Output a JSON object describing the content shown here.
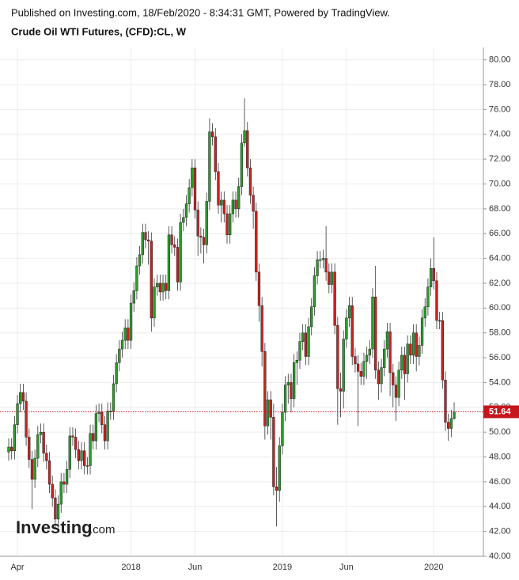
{
  "chart_data": {
    "type": "candlestick",
    "published": "Published on Investing.com, 18/Feb/2020 - 8:34:31 GMT, Powered by TradingView.",
    "title": "Crude Oil WTI Futures, (CFD):CL, W",
    "watermark": [
      "Investing",
      ".com"
    ],
    "categories": [
      null,
      null,
      null,
      "Apr",
      null,
      null,
      null,
      null,
      null,
      null,
      null,
      null,
      null,
      null,
      null,
      null,
      null,
      null,
      null,
      null,
      null,
      null,
      null,
      null,
      null,
      null,
      null,
      null,
      null,
      null,
      null,
      null,
      null,
      null,
      null,
      null,
      null,
      null,
      null,
      null,
      null,
      null,
      "2018",
      null,
      null,
      null,
      null,
      null,
      null,
      null,
      null,
      null,
      null,
      null,
      null,
      null,
      null,
      null,
      null,
      null,
      null,
      null,
      null,
      null,
      "Jun",
      null,
      null,
      null,
      null,
      null,
      null,
      null,
      null,
      null,
      null,
      null,
      null,
      null,
      null,
      null,
      null,
      null,
      null,
      null,
      null,
      null,
      null,
      null,
      null,
      null,
      null,
      null,
      null,
      null,
      "2019",
      null,
      null,
      null,
      null,
      null,
      null,
      null,
      null,
      null,
      null,
      null,
      null,
      null,
      null,
      null,
      null,
      null,
      null,
      null,
      null,
      null,
      "Jun",
      null,
      null,
      null,
      null,
      null,
      null,
      null,
      null,
      null,
      null,
      null,
      null,
      null,
      null,
      null,
      null,
      null,
      null,
      null,
      null,
      null,
      null,
      null,
      null,
      null,
      null,
      null,
      null,
      null,
      "2020",
      null,
      null,
      null,
      null,
      null,
      null,
      null
    ],
    "open": [
      48.4,
      48.8,
      48.5,
      50.6,
      52.3,
      53.2,
      52.5,
      49.6,
      47.8,
      46.2,
      47.9,
      49.8,
      50.0,
      48.3,
      47.7,
      45.8,
      44.7,
      43.0,
      44.2,
      46.0,
      45.8,
      47.0,
      49.7,
      49.6,
      48.6,
      47.7,
      48.5,
      47.3,
      47.3,
      49.9,
      49.3,
      51.5,
      51.6,
      50.6,
      49.3,
      51.7,
      51.7,
      53.9,
      55.6,
      56.7,
      57.4,
      58.4,
      57.4,
      60.4,
      61.4,
      63.4,
      64.3,
      66.1,
      65.5,
      65.4,
      59.2,
      61.7,
      62.0,
      61.3,
      62.0,
      61.4,
      65.9,
      65.1,
      64.9,
      62.1,
      66.9,
      67.3,
      68.4,
      69.7,
      71.3,
      67.9,
      65.8,
      65.7,
      65.1,
      68.6,
      74.2,
      73.8,
      71.0,
      68.3,
      68.7,
      67.6,
      65.9,
      67.6,
      68.7,
      68.0,
      69.8,
      73.3,
      74.3,
      71.3,
      69.1,
      67.8,
      62.9,
      60.2,
      56.5,
      50.5,
      52.6,
      51.2,
      45.6,
      45.3,
      48.9,
      51.6,
      53.8,
      54.0,
      52.7,
      55.6,
      55.8,
      57.3,
      58.0,
      56.1,
      58.5,
      60.1,
      62.6,
      63.9,
      63.9,
      64.0,
      62.9,
      61.9,
      62.9,
      58.6,
      53.5,
      53.3,
      57.5,
      59.2,
      60.2,
      56.1,
      55.5,
      54.9,
      54.5,
      55.7,
      56.2,
      56.7,
      60.9,
      55.0,
      53.9,
      55.2,
      56.7,
      58.1,
      54.8,
      53.8,
      52.8,
      55.0,
      56.2,
      54.7,
      57.1,
      56.2,
      58.0,
      56.1,
      57.0,
      59.2,
      60.1,
      61.7,
      63.2,
      62.2,
      59.0,
      59.0,
      54.2,
      50.8,
      50.3,
      51.1
    ],
    "high": [
      49.5,
      49.5,
      51.3,
      53.0,
      53.9,
      53.9,
      53.2,
      50.3,
      48.5,
      48.6,
      50.5,
      50.7,
      50.7,
      49.0,
      48.4,
      46.5,
      45.4,
      44.9,
      46.7,
      46.7,
      47.7,
      50.4,
      50.4,
      50.3,
      49.3,
      49.2,
      49.2,
      48.0,
      50.6,
      50.6,
      52.2,
      52.3,
      52.3,
      51.3,
      52.4,
      52.4,
      54.6,
      56.3,
      57.4,
      58.1,
      59.1,
      59.1,
      61.1,
      62.1,
      64.1,
      65.0,
      66.8,
      66.8,
      66.2,
      66.1,
      62.4,
      62.7,
      62.7,
      62.7,
      62.7,
      66.6,
      66.6,
      65.8,
      65.6,
      67.6,
      68.0,
      69.1,
      70.4,
      72.0,
      72.0,
      68.6,
      66.5,
      66.4,
      69.3,
      75.3,
      74.9,
      74.5,
      71.7,
      69.4,
      69.4,
      68.3,
      68.3,
      69.4,
      69.4,
      70.5,
      74.0,
      76.9,
      75.0,
      72.0,
      69.8,
      68.5,
      63.6,
      60.9,
      57.2,
      53.3,
      53.3,
      52.3,
      47.2,
      49.6,
      52.3,
      54.5,
      54.7,
      54.7,
      56.3,
      56.5,
      58.0,
      58.7,
      58.7,
      59.2,
      60.8,
      63.3,
      64.6,
      64.6,
      64.7,
      66.6,
      63.6,
      63.6,
      63.6,
      59.3,
      54.8,
      58.2,
      59.9,
      60.9,
      60.9,
      56.8,
      56.2,
      55.6,
      56.4,
      56.9,
      57.4,
      61.6,
      63.4,
      55.7,
      55.9,
      57.4,
      58.8,
      58.8,
      55.5,
      54.5,
      55.7,
      56.9,
      56.9,
      57.8,
      57.8,
      58.7,
      58.7,
      57.7,
      59.9,
      60.8,
      62.4,
      64.0,
      65.7,
      62.9,
      59.7,
      59.7,
      54.9,
      51.5,
      51.8,
      52.4
    ],
    "low": [
      47.7,
      47.8,
      47.8,
      49.9,
      51.6,
      51.8,
      48.9,
      47.1,
      43.8,
      45.5,
      47.2,
      49.1,
      47.6,
      47.0,
      45.1,
      44.0,
      42.3,
      42.3,
      43.5,
      45.1,
      45.1,
      46.3,
      48.9,
      47.9,
      47.0,
      47.0,
      46.6,
      46.6,
      46.6,
      48.6,
      48.6,
      50.8,
      49.9,
      48.6,
      48.6,
      51.0,
      51.0,
      53.2,
      54.9,
      56.0,
      56.7,
      56.7,
      56.7,
      59.7,
      60.7,
      62.7,
      63.6,
      64.8,
      63.5,
      58.1,
      58.5,
      61.0,
      60.6,
      60.6,
      60.7,
      60.7,
      64.4,
      64.2,
      61.4,
      61.4,
      66.2,
      66.6,
      67.7,
      69.0,
      67.2,
      64.2,
      64.4,
      63.6,
      64.4,
      67.9,
      73.1,
      70.3,
      67.6,
      66.9,
      66.9,
      65.2,
      65.2,
      66.9,
      67.3,
      67.3,
      69.1,
      73.0,
      70.6,
      68.4,
      66.4,
      62.2,
      58.9,
      55.3,
      49.4,
      49.8,
      49.4,
      44.9,
      42.4,
      44.4,
      48.2,
      50.9,
      52.3,
      51.6,
      52.0,
      53.8,
      55.1,
      56.6,
      55.4,
      55.4,
      57.8,
      59.4,
      61.9,
      63.2,
      63.2,
      62.2,
      61.2,
      61.2,
      57.9,
      50.6,
      51.2,
      51.9,
      56.8,
      58.5,
      55.4,
      54.8,
      50.5,
      53.8,
      53.8,
      54.3,
      55.5,
      56.0,
      54.3,
      52.6,
      53.2,
      54.5,
      56.0,
      52.9,
      52.0,
      50.9,
      52.1,
      54.3,
      52.6,
      54.0,
      55.5,
      55.5,
      54.9,
      55.4,
      56.3,
      58.5,
      59.4,
      61.0,
      61.5,
      58.3,
      58.3,
      53.5,
      50.1,
      49.3,
      49.6,
      51.0
    ],
    "close": [
      48.8,
      48.5,
      50.6,
      52.3,
      53.2,
      52.5,
      49.6,
      47.8,
      46.2,
      47.9,
      49.8,
      50.0,
      48.3,
      47.7,
      45.8,
      44.7,
      43.0,
      44.2,
      46.0,
      45.8,
      47.0,
      49.7,
      49.6,
      48.6,
      47.7,
      48.5,
      47.3,
      47.3,
      49.9,
      49.3,
      51.5,
      51.6,
      50.6,
      49.3,
      51.7,
      51.7,
      53.9,
      55.6,
      56.7,
      57.4,
      58.4,
      57.4,
      60.4,
      61.4,
      63.4,
      64.3,
      66.1,
      65.5,
      65.4,
      59.2,
      61.7,
      62.0,
      61.3,
      62.0,
      61.4,
      65.9,
      65.1,
      64.9,
      62.1,
      66.9,
      67.3,
      68.4,
      69.7,
      71.3,
      67.9,
      65.8,
      65.7,
      65.1,
      68.6,
      74.2,
      73.8,
      71.0,
      68.3,
      68.7,
      67.6,
      65.9,
      67.6,
      68.7,
      68.0,
      69.8,
      73.3,
      74.3,
      71.3,
      69.1,
      67.8,
      62.9,
      60.2,
      56.5,
      50.5,
      52.6,
      51.2,
      45.6,
      45.3,
      48.9,
      51.6,
      53.8,
      54.0,
      52.7,
      55.6,
      55.8,
      57.3,
      58.0,
      56.1,
      58.5,
      60.1,
      62.6,
      63.9,
      63.9,
      64.0,
      62.9,
      61.9,
      62.9,
      58.6,
      53.5,
      53.3,
      57.5,
      59.2,
      60.2,
      56.1,
      55.5,
      54.9,
      54.5,
      55.7,
      56.2,
      56.7,
      60.9,
      55.0,
      53.9,
      55.2,
      56.7,
      58.1,
      54.8,
      53.8,
      52.8,
      55.0,
      56.2,
      54.7,
      57.1,
      56.2,
      58.0,
      56.1,
      57.0,
      59.2,
      60.1,
      61.7,
      63.2,
      62.2,
      59.0,
      59.0,
      54.2,
      50.8,
      50.3,
      51.1,
      51.64
    ],
    "up_color": "#2a9d2a",
    "down_color": "#cc2020",
    "last_price": 51.64,
    "last_price_color": "#c4161c",
    "ylim": [
      40,
      81
    ],
    "yticks": [
      {
        "value": 40,
        "label": "40.00"
      },
      {
        "value": 42,
        "label": "42.00"
      },
      {
        "value": 44,
        "label": "44.00"
      },
      {
        "value": 46,
        "label": "46.00"
      },
      {
        "value": 48,
        "label": "48.00"
      },
      {
        "value": 50,
        "label": "50.00"
      },
      {
        "value": 52,
        "label": "52.00"
      },
      {
        "value": 54,
        "label": "54.00"
      },
      {
        "value": 56,
        "label": "56.00"
      },
      {
        "value": 58,
        "label": "58.00"
      },
      {
        "value": 60,
        "label": "60.00"
      },
      {
        "value": 62,
        "label": "62.00"
      },
      {
        "value": 64,
        "label": "64.00"
      },
      {
        "value": 66,
        "label": "66.00"
      },
      {
        "value": 68,
        "label": "68.00"
      },
      {
        "value": 70,
        "label": "70.00"
      },
      {
        "value": 72,
        "label": "72.00"
      },
      {
        "value": 74,
        "label": "74.00"
      },
      {
        "value": 76,
        "label": "76.00"
      },
      {
        "value": 78,
        "label": "78.00"
      },
      {
        "value": 80,
        "label": "80.00"
      }
    ],
    "grid": true
  }
}
